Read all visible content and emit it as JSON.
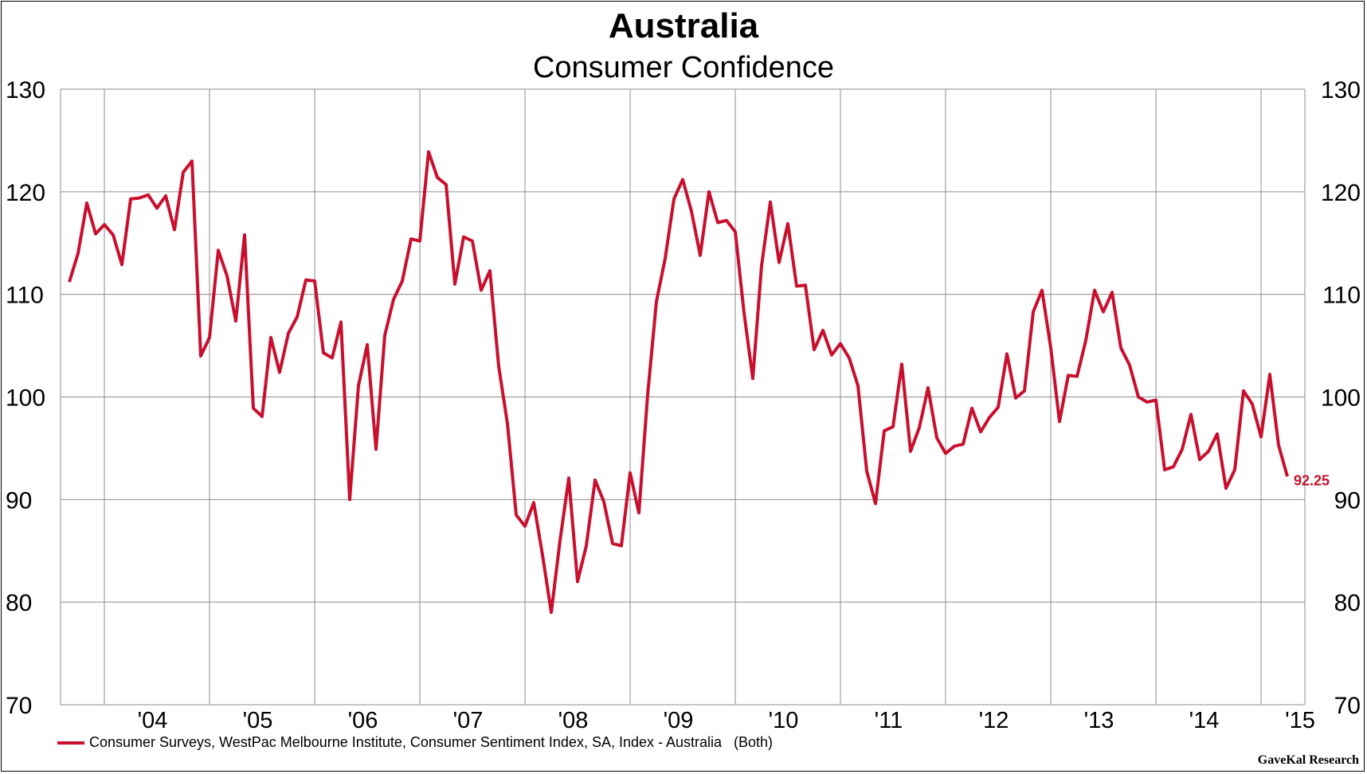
{
  "chart_data": {
    "type": "line",
    "title": "Australia",
    "subtitle": "Consumer Confidence",
    "ylim": [
      70,
      130
    ],
    "yticks": [
      70,
      80,
      90,
      100,
      110,
      120,
      130
    ],
    "ytick_labels": [
      "70",
      "80",
      "90",
      "100",
      "110",
      "120",
      "130"
    ],
    "xlabels": [
      "'04",
      "'05",
      "'06",
      "'07",
      "'08",
      "'09",
      "'10",
      "'11",
      "'12",
      "'13",
      "'14",
      "'15"
    ],
    "x_start": "2003-08",
    "x_end": "2015-06",
    "grid": true,
    "legend_position": "bottom-left",
    "series": [
      {
        "name": "Consumer Surveys, WestPac Melbourne Institute, Consumer Sentiment Index, SA, Index - Australia   (Both)",
        "color": "#c8102e",
        "start": "2003-09",
        "frequency": "monthly",
        "values": [
          111.2,
          114.0,
          118.9,
          115.9,
          116.8,
          115.8,
          112.9,
          119.3,
          119.4,
          119.7,
          118.4,
          119.6,
          116.3,
          121.9,
          123.0,
          104.0,
          105.8,
          114.3,
          111.8,
          107.4,
          115.8,
          98.9,
          98.1,
          105.8,
          102.4,
          106.2,
          107.8,
          111.4,
          111.3,
          104.3,
          103.8,
          107.3,
          90.0,
          101.1,
          105.1,
          94.9,
          106.0,
          109.5,
          111.3,
          115.4,
          115.2,
          123.9,
          121.4,
          120.7,
          111.0,
          115.6,
          115.2,
          110.4,
          112.3,
          103.0,
          97.4,
          88.5,
          87.4,
          89.7,
          84.6,
          79.0,
          86.0,
          92.1,
          82.0,
          85.5,
          91.9,
          89.8,
          85.7,
          85.5,
          92.6,
          88.7,
          100.2,
          109.3,
          113.5,
          119.3,
          121.2,
          118.1,
          113.8,
          120.0,
          117.0,
          117.2,
          116.1,
          108.2,
          101.8,
          112.8,
          119.0,
          113.1,
          116.9,
          110.8,
          110.9,
          104.6,
          106.5,
          104.1,
          105.2,
          103.8,
          101.1,
          92.8,
          89.6,
          96.7,
          97.1,
          103.2,
          94.7,
          97.0,
          100.9,
          96.0,
          94.5,
          95.2,
          95.4,
          98.9,
          96.6,
          98.0,
          99.0,
          104.2,
          99.9,
          100.6,
          108.3,
          110.4,
          104.8,
          97.6,
          102.1,
          102.0,
          105.5,
          110.4,
          108.3,
          110.2,
          104.8,
          103.1,
          100.0,
          99.5,
          99.7,
          92.9,
          93.2,
          94.9,
          98.3,
          93.9,
          94.7,
          96.4,
          91.1,
          92.9,
          100.6,
          99.3,
          96.1,
          102.2,
          95.3,
          92.25
        ]
      }
    ],
    "last_value_label": "92.25"
  },
  "legend": {
    "label": "Consumer Surveys, WestPac Melbourne Institute, Consumer Sentiment Index, SA, Index - Australia   (Both)"
  },
  "source": "GaveKal Research"
}
